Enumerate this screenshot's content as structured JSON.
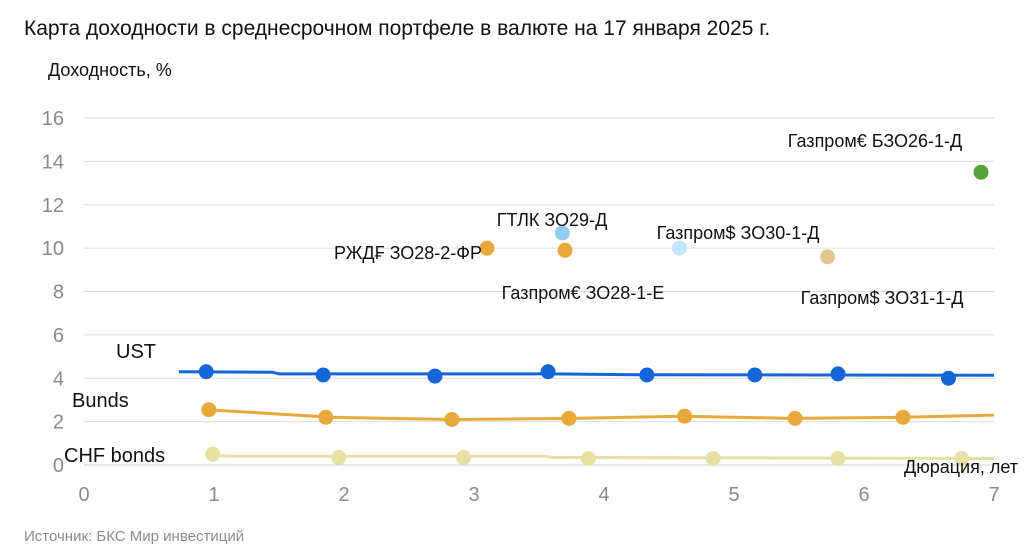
{
  "chart_data": {
    "type": "scatter",
    "title": "Карта доходности в среднесрочном портфеле в валюте на 17 января 2025 г.",
    "ylabel": "Доходность, %",
    "xlabel": "Дюрация, лет",
    "source": "Источник: БКС Мир инвестиций",
    "xlim": [
      0,
      7
    ],
    "ylim": [
      0,
      16
    ],
    "x_ticks": [
      0,
      1,
      2,
      3,
      4,
      5,
      6,
      7
    ],
    "y_ticks": [
      0,
      2,
      4,
      6,
      8,
      10,
      12,
      14,
      16
    ],
    "grid": true,
    "curves": [
      {
        "name": "UST",
        "color": "#1565d8",
        "line": [
          [
            0.73,
            4.3
          ],
          [
            1.45,
            4.28
          ],
          [
            1.5,
            4.2
          ],
          [
            3.6,
            4.2
          ],
          [
            4.3,
            4.16
          ],
          [
            7.0,
            4.14
          ]
        ],
        "points": [
          [
            0.94,
            4.3
          ],
          [
            1.84,
            4.15
          ],
          [
            2.7,
            4.1
          ],
          [
            3.57,
            4.3
          ],
          [
            4.33,
            4.15
          ],
          [
            5.16,
            4.15
          ],
          [
            5.8,
            4.2
          ],
          [
            6.65,
            4.0
          ]
        ]
      },
      {
        "name": "Bunds",
        "color": "#e8a93a",
        "line": [
          [
            0.95,
            2.55
          ],
          [
            1.9,
            2.2
          ],
          [
            2.85,
            2.1
          ],
          [
            3.75,
            2.15
          ],
          [
            4.6,
            2.25
          ],
          [
            5.45,
            2.15
          ],
          [
            6.3,
            2.2
          ],
          [
            7.0,
            2.3
          ]
        ],
        "points": [
          [
            0.96,
            2.55
          ],
          [
            1.86,
            2.2
          ],
          [
            2.83,
            2.1
          ],
          [
            3.73,
            2.15
          ],
          [
            4.62,
            2.25
          ],
          [
            5.47,
            2.15
          ],
          [
            6.3,
            2.2
          ]
        ]
      },
      {
        "name": "CHF bonds",
        "color": "#e6e0a4",
        "line": [
          [
            0.97,
            0.45
          ],
          [
            1.15,
            0.4
          ],
          [
            3.55,
            0.4
          ],
          [
            3.6,
            0.35
          ],
          [
            7.0,
            0.3
          ]
        ],
        "points": [
          [
            0.99,
            0.5
          ],
          [
            1.96,
            0.35
          ],
          [
            2.92,
            0.35
          ],
          [
            3.88,
            0.3
          ],
          [
            4.84,
            0.3
          ],
          [
            5.8,
            0.3
          ],
          [
            6.75,
            0.3
          ]
        ]
      }
    ],
    "bonds": [
      {
        "label": "РЖД₣ ЗО28-2-ФР",
        "x": 3.1,
        "y": 10.0,
        "color": "#e8a93a"
      },
      {
        "label": "ГТЛК ЗО29-Д",
        "x": 3.68,
        "y": 10.7,
        "color": "#8ecdf0"
      },
      {
        "label": "Газпром€ ЗО28-1-Е",
        "x": 3.7,
        "y": 9.9,
        "color": "#e8a93a"
      },
      {
        "label": "Газпром$ ЗО30-1-Д",
        "x": 4.58,
        "y": 10.0,
        "color": "#c6e6f8"
      },
      {
        "label": "Газпром$ ЗО31-1-Д",
        "x": 5.72,
        "y": 9.6,
        "color": "#e3c493"
      },
      {
        "label": "Газпром€ БЗО26-1-Д",
        "x": 6.9,
        "y": 13.5,
        "color": "#56a240"
      }
    ]
  }
}
